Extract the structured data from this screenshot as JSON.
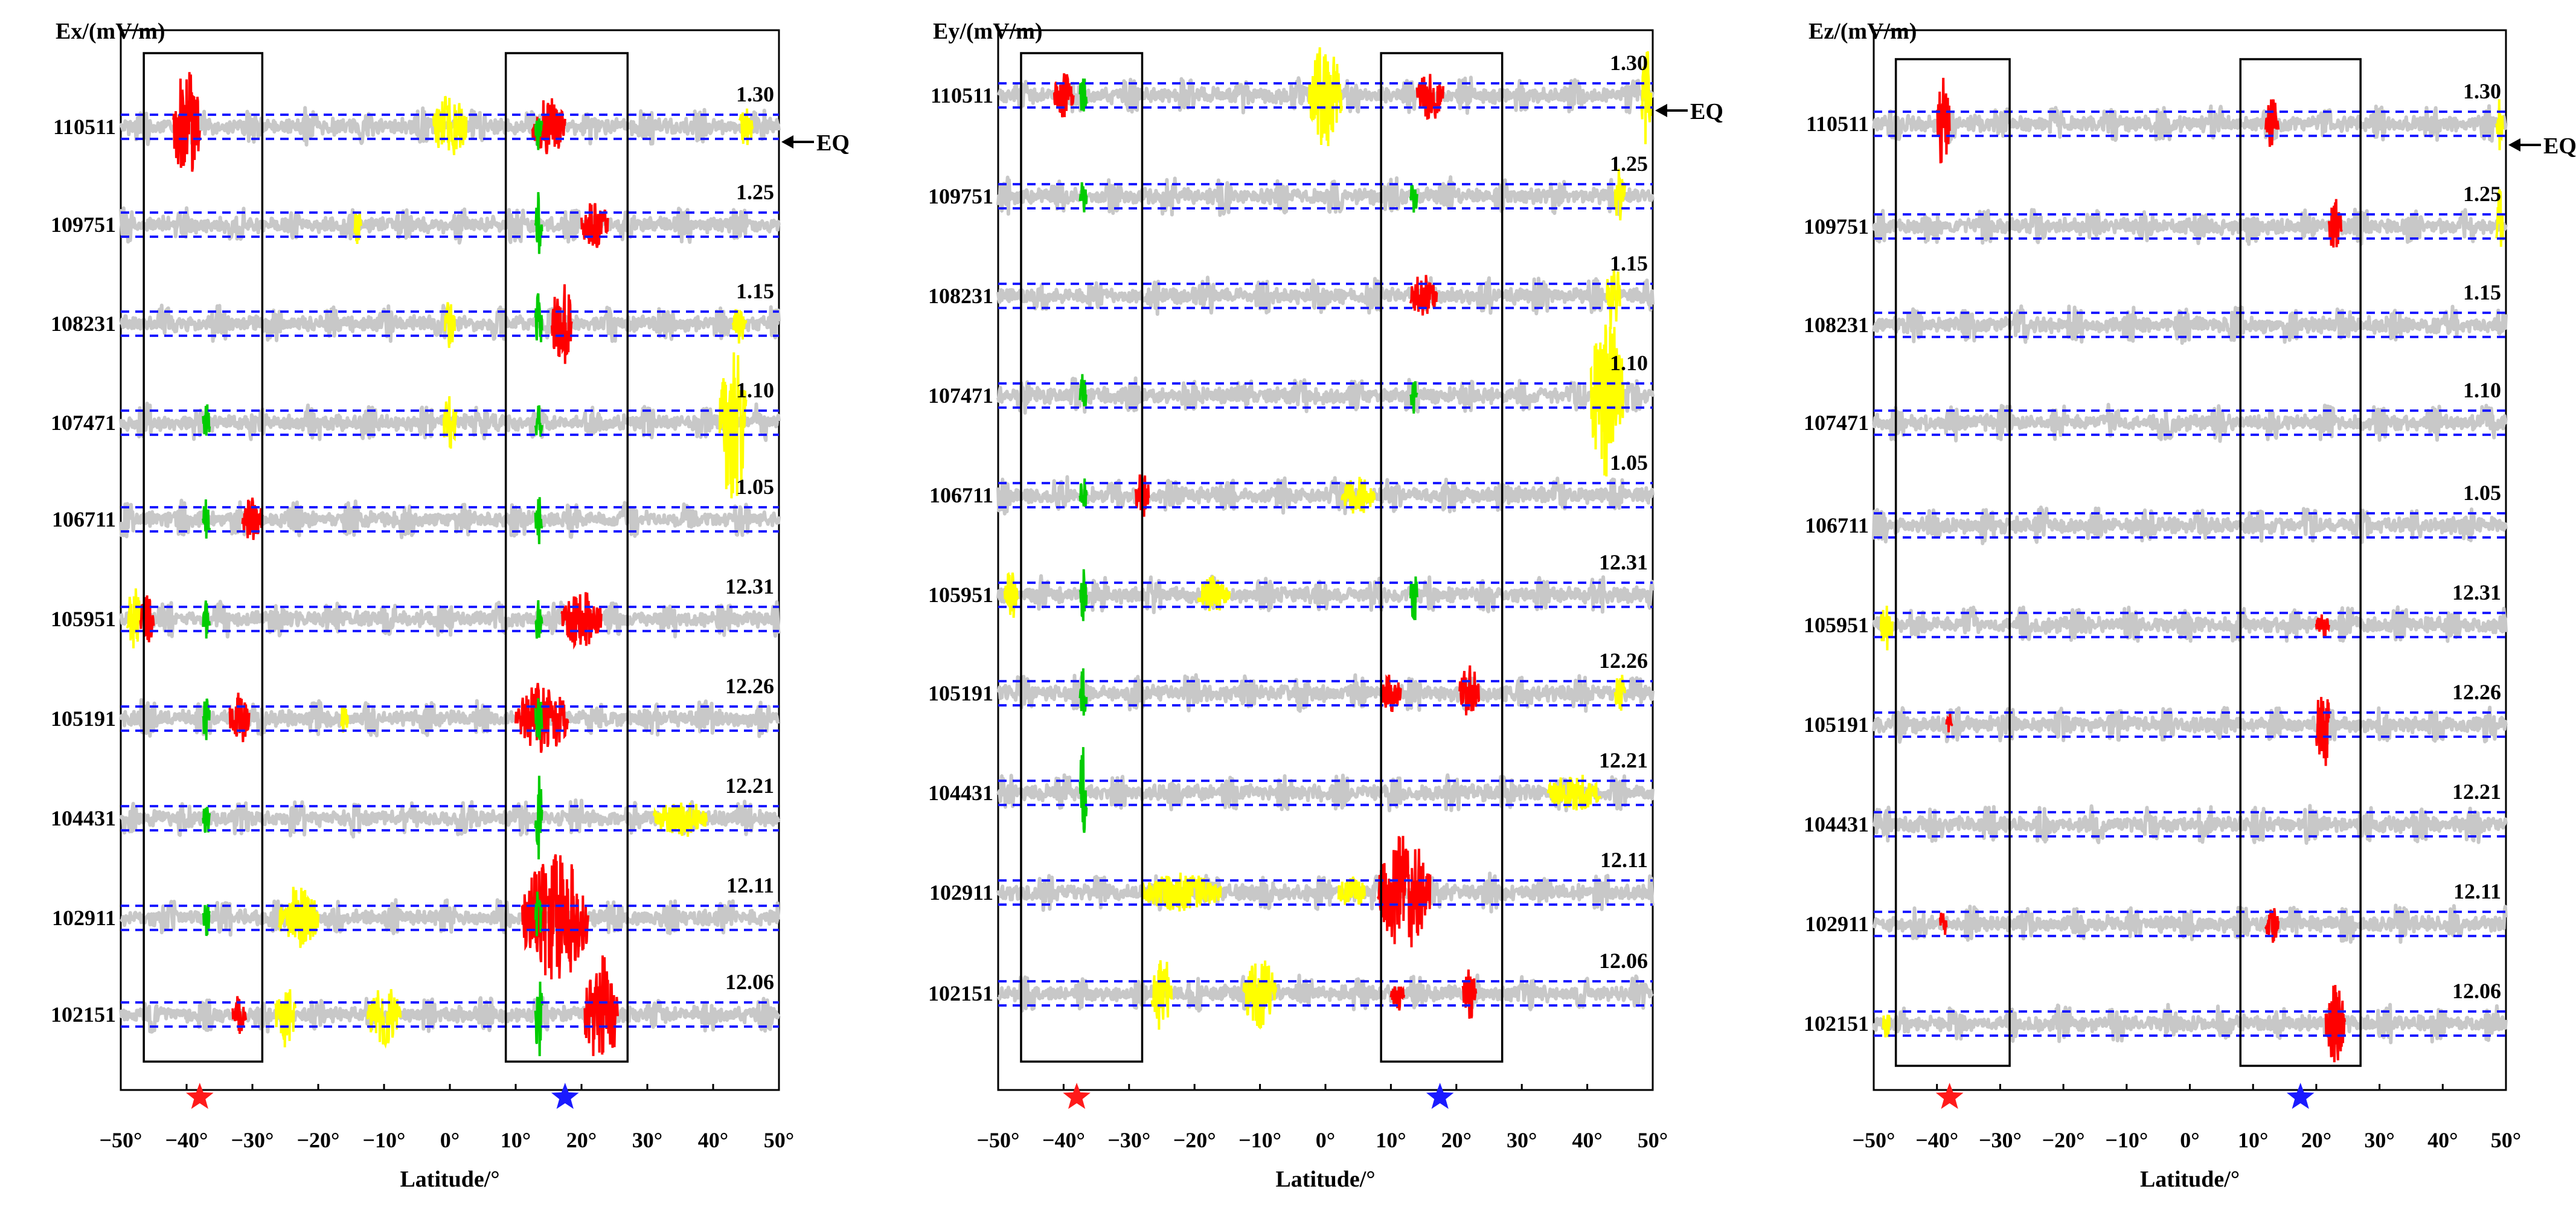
{
  "chart_data": [
    {
      "type": "line",
      "id": "ex",
      "ylabel": "Ex/(mV/m)",
      "xlabel": "Latitude/°",
      "xlim": [
        -50,
        50
      ],
      "xticks": [
        "−50°",
        "−40°",
        "−30°",
        "−20°",
        "−10°",
        "0°",
        "10°",
        "20°",
        "30°",
        "40°",
        "50°"
      ],
      "orbits": [
        "110511",
        "109751",
        "108231",
        "107471",
        "106711",
        "105951",
        "105191",
        "104431",
        "102911",
        "102151"
      ],
      "dates": [
        "1.30",
        "1.25",
        "1.15",
        "1.10",
        "1.05",
        "12.31",
        "12.26",
        "12.21",
        "12.11",
        "12.06"
      ],
      "eq_label": "EQ",
      "eq_row": 0,
      "boxes": [
        [
          -46.5,
          -28.5
        ],
        [
          8.5,
          27
        ]
      ],
      "markers": [
        {
          "lat": -38,
          "color": "#ff1a1a"
        },
        {
          "lat": 17.5,
          "color": "#1a1aff"
        }
      ],
      "series": [
        {
          "name": "110511",
          "bursts": [
            {
              "lat": -40,
              "w": 4,
              "amp": 0.9,
              "color": "#ff0000"
            },
            {
              "lat": 0,
              "w": 5,
              "amp": 0.5,
              "color": "#ffff00"
            },
            {
              "lat": 15,
              "w": 5,
              "amp": 0.45,
              "color": "#ff0000"
            },
            {
              "lat": 13.5,
              "w": 1,
              "amp": 0.4,
              "color": "#00cc00"
            },
            {
              "lat": 45,
              "w": 2,
              "amp": 0.3,
              "color": "#ffff00"
            }
          ]
        },
        {
          "name": "109751",
          "bursts": [
            {
              "lat": 13.5,
              "w": 1,
              "amp": 0.5,
              "color": "#00cc00"
            },
            {
              "lat": 22,
              "w": 4,
              "amp": 0.4,
              "color": "#ff0000"
            },
            {
              "lat": -14,
              "w": 1,
              "amp": 0.3,
              "color": "#ffff00"
            }
          ]
        },
        {
          "name": "108231",
          "bursts": [
            {
              "lat": 17,
              "w": 3,
              "amp": 0.7,
              "color": "#ff0000"
            },
            {
              "lat": 13.5,
              "w": 1,
              "amp": 0.5,
              "color": "#00cc00"
            },
            {
              "lat": 0,
              "w": 1.5,
              "amp": 0.4,
              "color": "#ffff00"
            },
            {
              "lat": 44,
              "w": 2,
              "amp": 0.3,
              "color": "#ffff00"
            }
          ]
        },
        {
          "name": "107471",
          "bursts": [
            {
              "lat": 43,
              "w": 4,
              "amp": 1.3,
              "color": "#ffff00"
            },
            {
              "lat": 0,
              "w": 2,
              "amp": 0.5,
              "color": "#ffff00"
            },
            {
              "lat": -37,
              "w": 1,
              "amp": 0.3,
              "color": "#00cc00"
            },
            {
              "lat": 13.5,
              "w": 1,
              "amp": 0.3,
              "color": "#00cc00"
            }
          ]
        },
        {
          "name": "106711",
          "bursts": [
            {
              "lat": -30,
              "w": 3,
              "amp": 0.35,
              "color": "#ff0000"
            },
            {
              "lat": -37,
              "w": 1,
              "amp": 0.4,
              "color": "#00cc00"
            },
            {
              "lat": 13.5,
              "w": 1,
              "amp": 0.4,
              "color": "#00cc00"
            }
          ]
        },
        {
          "name": "105951",
          "bursts": [
            {
              "lat": -48,
              "w": 2,
              "amp": 0.5,
              "color": "#ffff00"
            },
            {
              "lat": -46,
              "w": 2,
              "amp": 0.4,
              "color": "#ff0000"
            },
            {
              "lat": 20,
              "w": 6,
              "amp": 0.45,
              "color": "#ff0000"
            },
            {
              "lat": -37,
              "w": 1,
              "amp": 0.4,
              "color": "#00cc00"
            },
            {
              "lat": 13.5,
              "w": 1,
              "amp": 0.4,
              "color": "#00cc00"
            }
          ]
        },
        {
          "name": "105191",
          "bursts": [
            {
              "lat": -32,
              "w": 3,
              "amp": 0.4,
              "color": "#ff0000"
            },
            {
              "lat": 14,
              "w": 8,
              "amp": 0.55,
              "color": "#ff0000"
            },
            {
              "lat": -37,
              "w": 1,
              "amp": 0.4,
              "color": "#00cc00"
            },
            {
              "lat": 13.5,
              "w": 1,
              "amp": 0.5,
              "color": "#00cc00"
            },
            {
              "lat": -16,
              "w": 1,
              "amp": 0.3,
              "color": "#ffff00"
            }
          ]
        },
        {
          "name": "104431",
          "bursts": [
            {
              "lat": 35,
              "w": 8,
              "amp": 0.3,
              "color": "#ffff00"
            },
            {
              "lat": 13.5,
              "w": 1,
              "amp": 0.7,
              "color": "#00cc00"
            },
            {
              "lat": -37,
              "w": 1,
              "amp": 0.3,
              "color": "#00cc00"
            }
          ]
        },
        {
          "name": "102911",
          "bursts": [
            {
              "lat": 16,
              "w": 10,
              "amp": 1.0,
              "color": "#ff0000"
            },
            {
              "lat": -23,
              "w": 6,
              "amp": 0.5,
              "color": "#ffff00"
            },
            {
              "lat": 13.5,
              "w": 1,
              "amp": 0.5,
              "color": "#00cc00"
            },
            {
              "lat": -37,
              "w": 1,
              "amp": 0.3,
              "color": "#00cc00"
            }
          ]
        },
        {
          "name": "102151",
          "bursts": [
            {
              "lat": 23,
              "w": 5,
              "amp": 0.9,
              "color": "#ff0000"
            },
            {
              "lat": -25,
              "w": 3,
              "amp": 0.5,
              "color": "#ffff00"
            },
            {
              "lat": -10,
              "w": 5,
              "amp": 0.5,
              "color": "#ffff00"
            },
            {
              "lat": 13.5,
              "w": 1,
              "amp": 0.7,
              "color": "#00cc00"
            },
            {
              "lat": -32,
              "w": 2,
              "amp": 0.3,
              "color": "#ff0000"
            }
          ]
        }
      ]
    },
    {
      "type": "line",
      "id": "ey",
      "ylabel": "Ey/(mV/m)",
      "xlabel": "Latitude/°",
      "xlim": [
        -50,
        50
      ],
      "xticks": [
        "−50°",
        "−40°",
        "−30°",
        "−20°",
        "−10°",
        "0°",
        "10°",
        "20°",
        "30°",
        "40°",
        "50°"
      ],
      "orbits": [
        "110511",
        "109751",
        "108231",
        "107471",
        "106711",
        "105951",
        "105191",
        "104431",
        "102911",
        "102151"
      ],
      "dates": [
        "1.30",
        "1.25",
        "1.15",
        "1.10",
        "1.05",
        "12.31",
        "12.26",
        "12.21",
        "12.11",
        "12.06"
      ],
      "eq_label": "EQ",
      "eq_row": 0,
      "boxes": [
        [
          -46.5,
          -28
        ],
        [
          8.5,
          27
        ]
      ],
      "markers": [
        {
          "lat": -38,
          "color": "#ff1a1a"
        },
        {
          "lat": 17.5,
          "color": "#1a1aff"
        }
      ],
      "series": [
        {
          "name": "110511",
          "bursts": [
            {
              "lat": 0,
              "w": 5,
              "amp": 0.8,
              "color": "#ffff00"
            },
            {
              "lat": -40,
              "w": 3,
              "amp": 0.35,
              "color": "#ff0000"
            },
            {
              "lat": 16,
              "w": 4,
              "amp": 0.4,
              "color": "#ff0000"
            },
            {
              "lat": 49,
              "w": 1.5,
              "amp": 0.8,
              "color": "#ffff00"
            },
            {
              "lat": -37,
              "w": 1,
              "amp": 0.4,
              "color": "#00cc00"
            }
          ]
        },
        {
          "name": "109751",
          "bursts": [
            {
              "lat": -37,
              "w": 1,
              "amp": 0.3,
              "color": "#00cc00"
            },
            {
              "lat": 13.5,
              "w": 1,
              "amp": 0.3,
              "color": "#00cc00"
            },
            {
              "lat": 45,
              "w": 1.5,
              "amp": 0.5,
              "color": "#ffff00"
            }
          ]
        },
        {
          "name": "108231",
          "bursts": [
            {
              "lat": 15,
              "w": 4,
              "amp": 0.35,
              "color": "#ff0000"
            },
            {
              "lat": 44,
              "w": 2,
              "amp": 0.6,
              "color": "#ffff00"
            }
          ]
        },
        {
          "name": "107471",
          "bursts": [
            {
              "lat": 43,
              "w": 5,
              "amp": 1.3,
              "color": "#ffff00"
            },
            {
              "lat": -37,
              "w": 1,
              "amp": 0.4,
              "color": "#00cc00"
            },
            {
              "lat": 13.5,
              "w": 1,
              "amp": 0.3,
              "color": "#00cc00"
            }
          ]
        },
        {
          "name": "106711",
          "bursts": [
            {
              "lat": -28,
              "w": 2,
              "amp": 0.4,
              "color": "#ff0000"
            },
            {
              "lat": 5,
              "w": 5,
              "amp": 0.3,
              "color": "#ffff00"
            },
            {
              "lat": -37,
              "w": 1,
              "amp": 0.3,
              "color": "#00cc00"
            }
          ]
        },
        {
          "name": "105951",
          "bursts": [
            {
              "lat": -48,
              "w": 2,
              "amp": 0.4,
              "color": "#ffff00"
            },
            {
              "lat": -17,
              "w": 5,
              "amp": 0.3,
              "color": "#ffff00"
            },
            {
              "lat": 13.5,
              "w": 1,
              "amp": 0.5,
              "color": "#00cc00"
            },
            {
              "lat": -37,
              "w": 1,
              "amp": 0.4,
              "color": "#00cc00"
            }
          ]
        },
        {
          "name": "105191",
          "bursts": [
            {
              "lat": 22,
              "w": 3,
              "amp": 0.45,
              "color": "#ff0000"
            },
            {
              "lat": 10,
              "w": 3,
              "amp": 0.3,
              "color": "#ff0000"
            },
            {
              "lat": -37,
              "w": 1,
              "amp": 0.4,
              "color": "#00cc00"
            },
            {
              "lat": 45,
              "w": 1.5,
              "amp": 0.4,
              "color": "#ffff00"
            }
          ]
        },
        {
          "name": "104431",
          "bursts": [
            {
              "lat": 38,
              "w": 8,
              "amp": 0.3,
              "color": "#ffff00"
            },
            {
              "lat": -37,
              "w": 1,
              "amp": 0.8,
              "color": "#00cc00"
            }
          ]
        },
        {
          "name": "102911",
          "bursts": [
            {
              "lat": 12,
              "w": 8,
              "amp": 0.9,
              "color": "#ff0000"
            },
            {
              "lat": -22,
              "w": 12,
              "amp": 0.3,
              "color": "#ffff00"
            },
            {
              "lat": 4,
              "w": 4,
              "amp": 0.3,
              "color": "#ffff00"
            }
          ]
        },
        {
          "name": "102151",
          "bursts": [
            {
              "lat": -25,
              "w": 3,
              "amp": 0.6,
              "color": "#ffff00"
            },
            {
              "lat": -10,
              "w": 5,
              "amp": 0.55,
              "color": "#ffff00"
            },
            {
              "lat": 22,
              "w": 2,
              "amp": 0.4,
              "color": "#ff0000"
            },
            {
              "lat": 11,
              "w": 2,
              "amp": 0.3,
              "color": "#ff0000"
            }
          ]
        }
      ]
    },
    {
      "type": "line",
      "id": "ez",
      "ylabel": "Ez/(mV/m)",
      "xlabel": "Latitude/°",
      "xlim": [
        -50,
        50
      ],
      "xticks": [
        "−50°",
        "−40°",
        "−30°",
        "−20°",
        "−10°",
        "0°",
        "10°",
        "20°",
        "30°",
        "40°",
        "50°"
      ],
      "orbits": [
        "110511",
        "109751",
        "108231",
        "107471",
        "106711",
        "105951",
        "105191",
        "104431",
        "102911",
        "102151"
      ],
      "dates": [
        "1.30",
        "1.25",
        "1.15",
        "1.10",
        "1.05",
        "12.31",
        "12.26",
        "12.21",
        "12.11",
        "12.06"
      ],
      "eq_label": "EQ",
      "eq_row": 0,
      "boxes": [
        [
          -46.5,
          -28.5
        ],
        [
          8,
          27
        ]
      ],
      "markers": [
        {
          "lat": -38,
          "color": "#ff1a1a"
        },
        {
          "lat": 17.5,
          "color": "#1a1aff"
        }
      ],
      "series": [
        {
          "name": "110511",
          "bursts": [
            {
              "lat": -39,
              "w": 2,
              "amp": 0.7,
              "color": "#ff0000"
            },
            {
              "lat": 13,
              "w": 2,
              "amp": 0.4,
              "color": "#ff0000"
            },
            {
              "lat": 49,
              "w": 1,
              "amp": 0.4,
              "color": "#ffff00"
            }
          ]
        },
        {
          "name": "109751",
          "bursts": [
            {
              "lat": 23,
              "w": 2,
              "amp": 0.45,
              "color": "#ff0000"
            },
            {
              "lat": 49,
              "w": 1,
              "amp": 0.6,
              "color": "#ffff00"
            }
          ]
        },
        {
          "name": "108231",
          "bursts": []
        },
        {
          "name": "107471",
          "bursts": []
        },
        {
          "name": "106711",
          "bursts": []
        },
        {
          "name": "105951",
          "bursts": [
            {
              "lat": -48,
              "w": 2,
              "amp": 0.4,
              "color": "#ffff00"
            },
            {
              "lat": 21,
              "w": 2,
              "amp": 0.2,
              "color": "#ff0000"
            }
          ]
        },
        {
          "name": "105191",
          "bursts": [
            {
              "lat": 21,
              "w": 2,
              "amp": 0.8,
              "color": "#ff0000"
            },
            {
              "lat": -38,
              "w": 1,
              "amp": 0.2,
              "color": "#ff0000"
            }
          ]
        },
        {
          "name": "104431",
          "bursts": []
        },
        {
          "name": "102911",
          "bursts": [
            {
              "lat": -39,
              "w": 1,
              "amp": 0.3,
              "color": "#ff0000"
            },
            {
              "lat": 13,
              "w": 2,
              "amp": 0.3,
              "color": "#ff0000"
            }
          ]
        },
        {
          "name": "102151",
          "bursts": [
            {
              "lat": 23,
              "w": 3,
              "amp": 0.6,
              "color": "#ff0000"
            },
            {
              "lat": -48,
              "w": 1,
              "amp": 0.3,
              "color": "#ffff00"
            }
          ]
        }
      ]
    }
  ]
}
